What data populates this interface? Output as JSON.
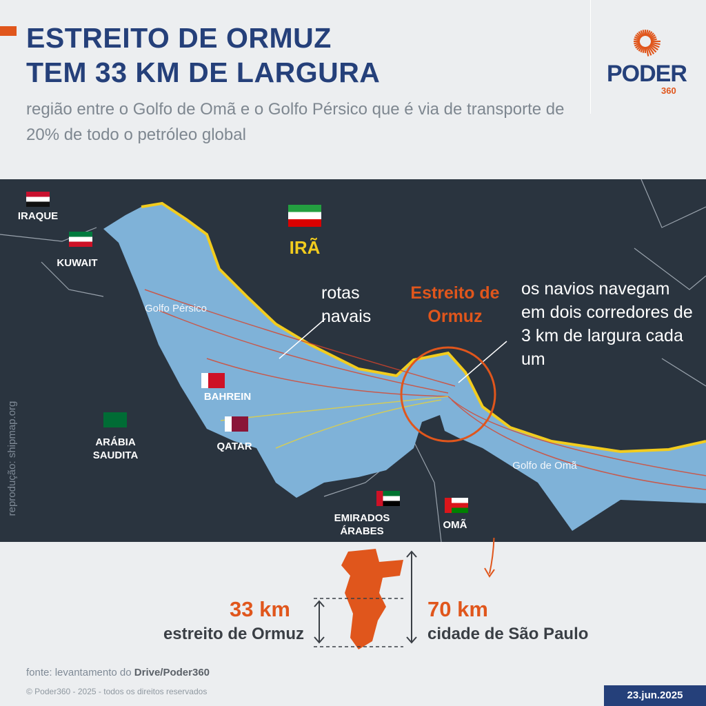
{
  "header": {
    "title_line1": "ESTREITO DE ORMUZ",
    "title_line2": "TEM 33 KM DE LARGURA",
    "subtitle": "região entre o Golfo de Omã e o Golfo Pérsico que é via de transporte de 20% de todo o petróleo global"
  },
  "logo": {
    "word": "PODER",
    "number": "360"
  },
  "map": {
    "countries": {
      "iraq": "IRAQUE",
      "kuwait": "KUWAIT",
      "iran": "IRÃ",
      "bahrain": "BAHREIN",
      "qatar": "QATAR",
      "saudi": "ARÁBIA SAUDITA",
      "uae": "EMIRADOS ÁRABES",
      "oman": "OMÃ"
    },
    "seas": {
      "persian_gulf": "Golfo Pérsico",
      "gulf_of_oman": "Golfo de Omã"
    },
    "annotations": {
      "routes": "rotas navais",
      "strait": "Estreito de Ormuz",
      "corridors": "os navios navegam em dois corredores de 3 km de largura cada um"
    },
    "credit": "reprodução: shipmap.org",
    "colors": {
      "sea": "#7fb2d8",
      "land": "#2a343f",
      "iran_coast": "#f2cc1e",
      "accent": "#e0561c",
      "routes": "#d9442a"
    }
  },
  "comparison": {
    "strait_value": "33 km",
    "strait_label": "estreito de Ormuz",
    "sp_value": "70 km",
    "sp_label": "cidade de São Paulo"
  },
  "footer": {
    "source_prefix": "fonte: levantamento do ",
    "source_bold": "Drive/Poder360",
    "copyright": "© Poder360 - 2025 - todos os direitos reservados",
    "date": "23.jun.2025"
  }
}
